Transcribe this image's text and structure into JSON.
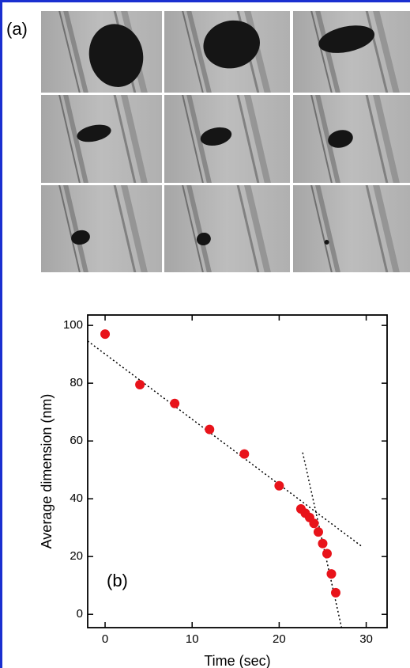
{
  "chart_data": {
    "type": "scatter",
    "panel_labels": [
      "(a)",
      "(b)"
    ],
    "xlabel": "Time (sec)",
    "ylabel": "Average dimension (nm)",
    "x": [
      0,
      4,
      8,
      12,
      16,
      20,
      22.5,
      23,
      23.5,
      24,
      24.5,
      25,
      25.5,
      26,
      26.5
    ],
    "series": [
      {
        "color": "#e8131a",
        "values": [
          97,
          79.5,
          73,
          64,
          55.5,
          44.5,
          36.5,
          35,
          33.5,
          31.5,
          28.5,
          24.5,
          21,
          14,
          7.5
        ]
      }
    ],
    "fit_lines": [
      {
        "x": [
          -2,
          29.5
        ],
        "values": [
          94.6,
          23.5
        ]
      },
      {
        "x": [
          22.7,
          27.2
        ],
        "values": [
          56,
          -5
        ]
      }
    ],
    "xlim": [
      -2,
      32.4
    ],
    "ylim": [
      -4.6,
      103.6
    ],
    "xticks": [
      0,
      10,
      20,
      30
    ],
    "yticks": [
      0,
      20,
      40,
      60,
      80,
      100
    ]
  }
}
